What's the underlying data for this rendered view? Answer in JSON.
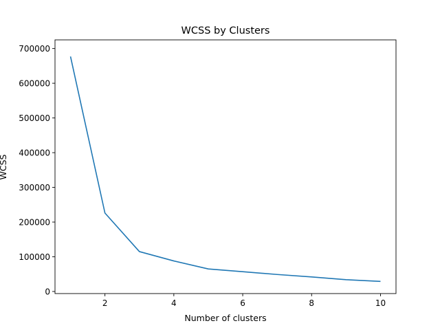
{
  "chart_data": {
    "type": "line",
    "title": "WCSS by Clusters",
    "xlabel": "Number of clusters",
    "ylabel": "WCSS",
    "x": [
      1,
      2,
      3,
      4,
      5,
      6,
      7,
      8,
      9,
      10
    ],
    "series": [
      {
        "values": [
          677000,
          226000,
          115000,
          88000,
          65000,
          57000,
          49000,
          42000,
          34000,
          29000
        ]
      }
    ],
    "xlim": [
      0.55,
      10.45
    ],
    "ylim": [
      -6000,
      725000
    ],
    "xticks": [
      2,
      4,
      6,
      8,
      10
    ],
    "xtick_labels": [
      "2",
      "4",
      "6",
      "8",
      "10"
    ],
    "yticks": [
      0,
      100000,
      200000,
      300000,
      400000,
      500000,
      600000,
      700000
    ],
    "ytick_labels": [
      "0",
      "100000",
      "200000",
      "300000",
      "400000",
      "500000",
      "600000",
      "700000"
    ],
    "grid": false,
    "legend": "none",
    "line_color": "#1f77b4"
  }
}
